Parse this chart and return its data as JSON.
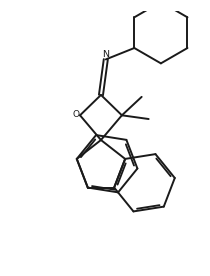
{
  "bg_color": "#ffffff",
  "line_color": "#1a1a1a",
  "line_width": 1.4,
  "fig_width": 2.1,
  "fig_height": 2.76,
  "dpi": 100
}
